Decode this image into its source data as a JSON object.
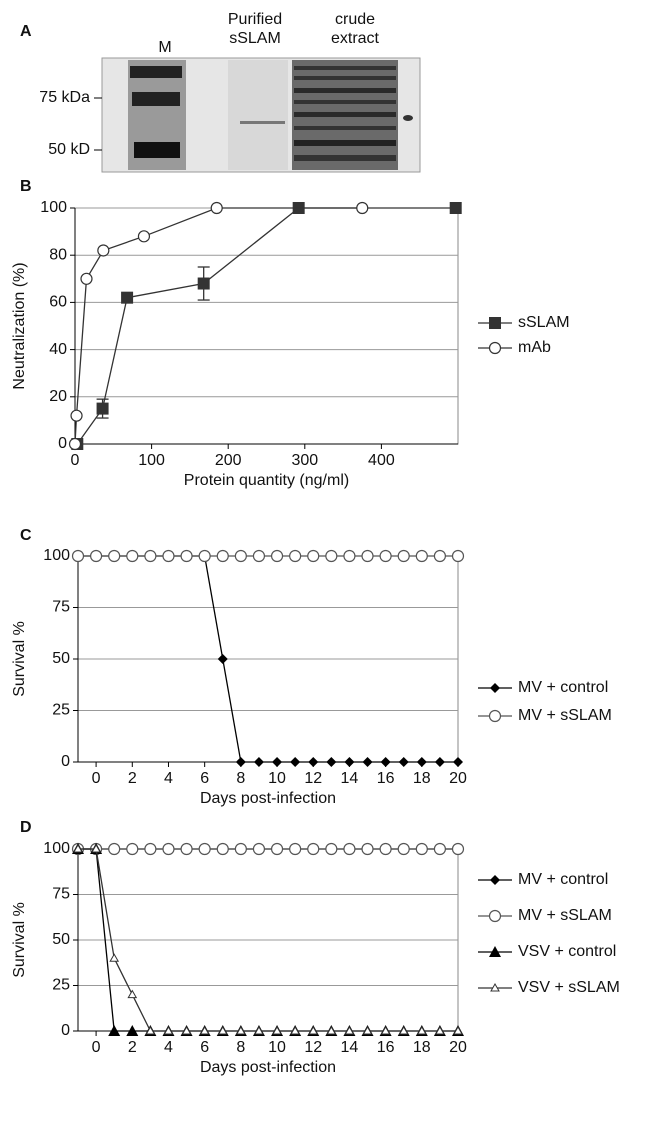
{
  "gel": {
    "panel_label": "A",
    "lane_labels": [
      "M",
      "Purified\nsSLAM",
      "crude\nextract"
    ],
    "marker_labels": [
      "75 kDa",
      "50 kD"
    ]
  },
  "chart_data": [
    {
      "type": "line",
      "panel_label": "B",
      "x_label": "Protein quantity (ng/ml)",
      "y_label": "Neutralization (%)",
      "xlim": [
        0,
        500
      ],
      "xticks": [
        0,
        100,
        200,
        300,
        400
      ],
      "ylim": [
        0,
        100
      ],
      "yticks": [
        0,
        20,
        40,
        60,
        80,
        100
      ],
      "grid": true,
      "series": [
        {
          "name": "sSLAM",
          "color": "#333333",
          "marker": "square",
          "x": [
            3,
            36,
            68,
            168,
            292,
            497
          ],
          "values": [
            0,
            15,
            62,
            68,
            100,
            100
          ],
          "errors": [
            null,
            4,
            null,
            7,
            null,
            null
          ]
        },
        {
          "name": "mAb",
          "color": "#333333",
          "marker": "circle",
          "x": [
            0,
            2,
            15,
            37,
            90,
            185,
            375
          ],
          "values": [
            0,
            12,
            70,
            82,
            88,
            100,
            100
          ]
        }
      ]
    },
    {
      "type": "line",
      "panel_label": "C",
      "x_label": "Days post-infection",
      "y_label": "Survival %",
      "xlim": [
        -1,
        20
      ],
      "xticks": [
        0,
        2,
        4,
        6,
        8,
        10,
        12,
        14,
        16,
        18,
        20
      ],
      "ylim": [
        0,
        100
      ],
      "yticks": [
        0,
        25,
        50,
        75,
        100
      ],
      "grid": true,
      "x": [
        -1,
        0,
        1,
        2,
        3,
        4,
        5,
        6,
        7,
        8,
        9,
        10,
        11,
        12,
        13,
        14,
        15,
        16,
        17,
        18,
        19,
        20
      ],
      "series": [
        {
          "name": "MV + control",
          "color": "#000000",
          "marker": "diamond",
          "values": [
            100,
            100,
            100,
            100,
            100,
            100,
            100,
            100,
            50,
            0,
            0,
            0,
            0,
            0,
            0,
            0,
            0,
            0,
            0,
            0,
            0,
            0
          ]
        },
        {
          "name": "MV + sSLAM",
          "color": "#555555",
          "marker": "circle",
          "values": [
            100,
            100,
            100,
            100,
            100,
            100,
            100,
            100,
            100,
            100,
            100,
            100,
            100,
            100,
            100,
            100,
            100,
            100,
            100,
            100,
            100,
            100
          ]
        }
      ]
    },
    {
      "type": "line",
      "panel_label": "D",
      "x_label": "Days post-infection",
      "y_label": "Survival %",
      "xlim": [
        -1,
        20
      ],
      "xticks": [
        0,
        2,
        4,
        6,
        8,
        10,
        12,
        14,
        16,
        18,
        20
      ],
      "ylim": [
        0,
        100
      ],
      "yticks": [
        0,
        25,
        50,
        75,
        100
      ],
      "grid": true,
      "x": [
        -1,
        0,
        1,
        2,
        3,
        4,
        5,
        6,
        7,
        8,
        9,
        10,
        11,
        12,
        13,
        14,
        15,
        16,
        17,
        18,
        19,
        20
      ],
      "series": [
        {
          "name": "MV + control",
          "color": "#000000",
          "marker": "diamond",
          "values": [
            100,
            100,
            100,
            100,
            100,
            100,
            100,
            100,
            100,
            100,
            100,
            100,
            100,
            100,
            100,
            100,
            100,
            100,
            100,
            100,
            100,
            100
          ]
        },
        {
          "name": "MV + sSLAM",
          "color": "#555555",
          "marker": "circle",
          "values": [
            100,
            100,
            100,
            100,
            100,
            100,
            100,
            100,
            100,
            100,
            100,
            100,
            100,
            100,
            100,
            100,
            100,
            100,
            100,
            100,
            100,
            100
          ]
        },
        {
          "name": "VSV + control",
          "color": "#000000",
          "marker": "triangle",
          "values": [
            100,
            100,
            0,
            0,
            0,
            0,
            0,
            0,
            0,
            0,
            0,
            0,
            0,
            0,
            0,
            0,
            0,
            0,
            0,
            0,
            0,
            0
          ]
        },
        {
          "name": "VSV + sSLAM",
          "color": "#333333",
          "marker": "triangle-open",
          "values": [
            100,
            100,
            40,
            20,
            0,
            0,
            0,
            0,
            0,
            0,
            0,
            0,
            0,
            0,
            0,
            0,
            0,
            0,
            0,
            0,
            0,
            0
          ]
        }
      ]
    }
  ]
}
